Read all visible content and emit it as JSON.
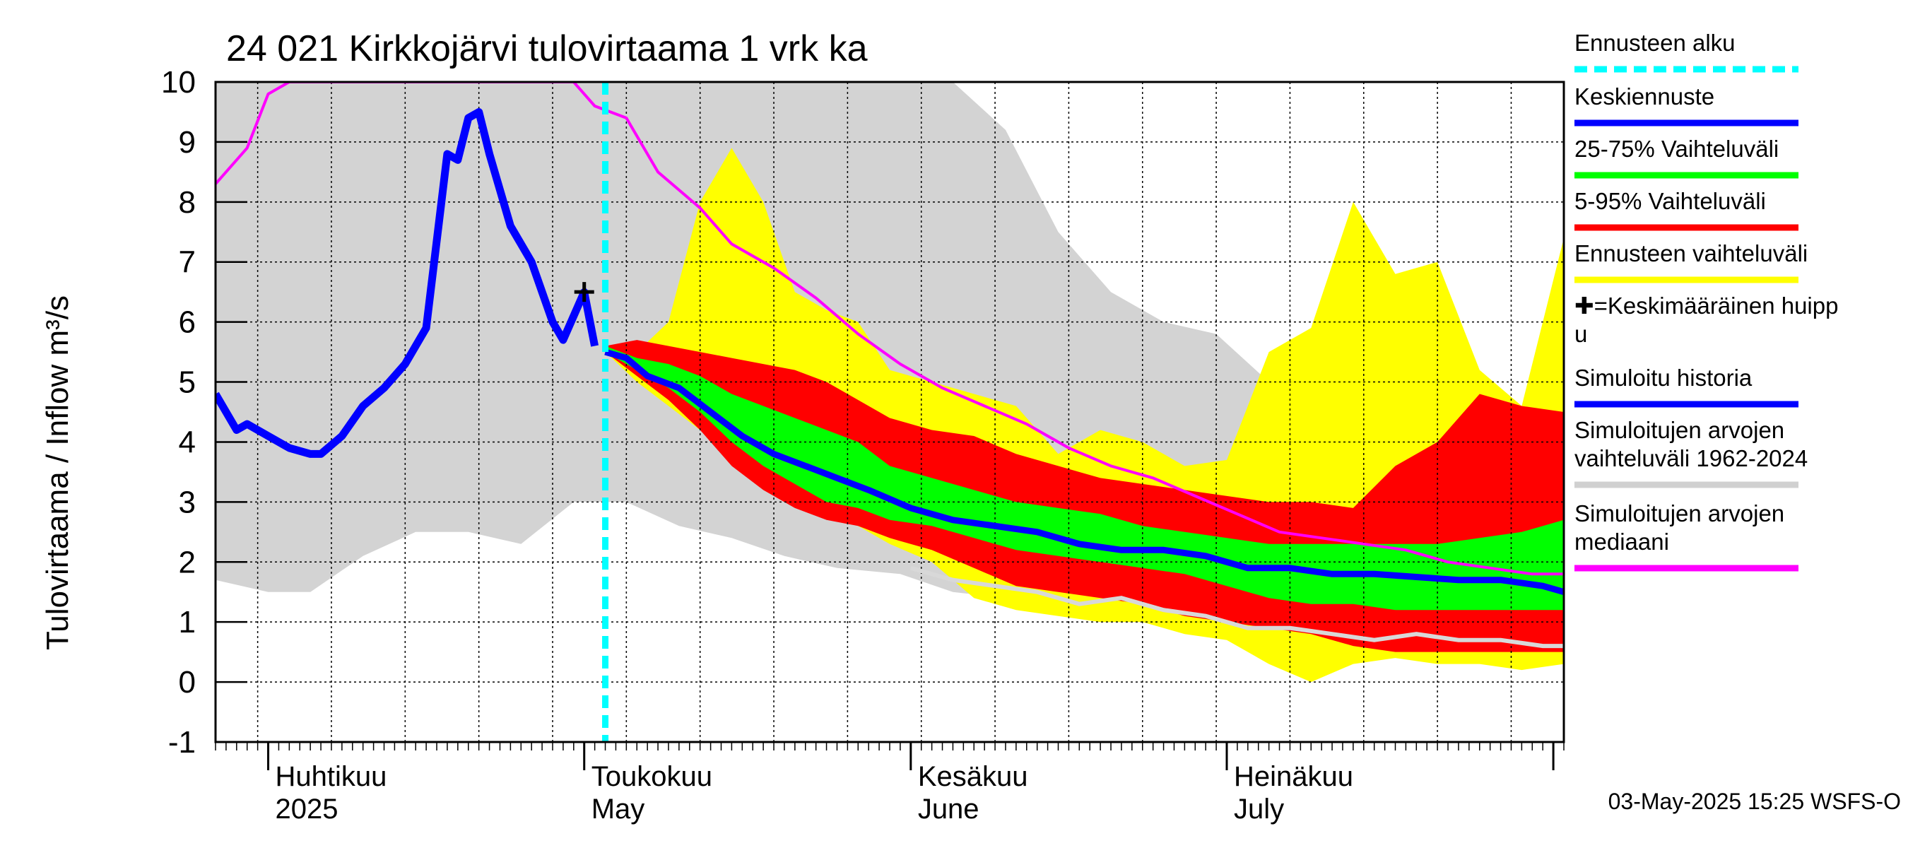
{
  "chart_data": {
    "type": "area",
    "title": "24 021 Kirkkojärvi tulovirtaama 1 vrk ka",
    "ylabel": "Tulovirtaama / Inflow    m³/s",
    "ylim": [
      -1,
      10
    ],
    "yticks": [
      -1,
      0,
      1,
      2,
      3,
      4,
      5,
      6,
      7,
      8,
      9,
      10
    ],
    "xlim": [
      "2025-03-27",
      "2025-08-02"
    ],
    "grid": true,
    "month_labels": [
      {
        "fi": "Huhtikuu",
        "en": "2025",
        "date": "2025-04-01"
      },
      {
        "fi": "Toukokuu",
        "en": "May",
        "date": "2025-05-01"
      },
      {
        "fi": "Kesäkuu",
        "en": "June",
        "date": "2025-06-01"
      },
      {
        "fi": "Heinäkuu",
        "en": "July",
        "date": "2025-07-01"
      }
    ],
    "forecast_start": "2025-05-03",
    "mean_peak": {
      "date": "2025-05-01",
      "value": 6.5
    },
    "hist_band": {
      "x": [
        "2025-03-27",
        "2025-04-01",
        "2025-04-05",
        "2025-04-10",
        "2025-04-15",
        "2025-04-20",
        "2025-04-25",
        "2025-04-30",
        "2025-05-05",
        "2025-05-10",
        "2025-05-15",
        "2025-05-20",
        "2025-05-25",
        "2025-05-31",
        "2025-06-05",
        "2025-06-10",
        "2025-06-15",
        "2025-06-20",
        "2025-06-25",
        "2025-06-30",
        "2025-07-05",
        "2025-07-10",
        "2025-07-15",
        "2025-07-20",
        "2025-07-25",
        "2025-07-30",
        "2025-08-02"
      ],
      "lo": [
        1.7,
        1.5,
        1.5,
        2.1,
        2.5,
        2.5,
        2.3,
        3.0,
        3.0,
        2.6,
        2.4,
        2.1,
        1.9,
        1.8,
        1.5,
        1.4,
        1.4,
        1.2,
        1.1,
        1.0,
        0.9,
        0.8,
        0.7,
        0.6,
        0.5,
        0.4,
        0.4
      ],
      "hi": [
        10,
        10,
        10,
        10,
        10,
        10,
        10,
        10,
        10,
        10,
        10,
        10,
        10,
        10,
        10,
        9.2,
        7.5,
        6.5,
        6.0,
        5.8,
        5.0,
        4.6,
        4.4,
        4.6,
        4.2,
        4.0,
        4.0
      ]
    },
    "forecast_range": {
      "x": [
        "2025-05-03",
        "2025-05-06",
        "2025-05-09",
        "2025-05-12",
        "2025-05-15",
        "2025-05-18",
        "2025-05-21",
        "2025-05-24",
        "2025-05-27",
        "2025-05-30",
        "2025-06-03",
        "2025-06-07",
        "2025-06-11",
        "2025-06-15",
        "2025-06-19",
        "2025-06-23",
        "2025-06-27",
        "2025-07-01",
        "2025-07-05",
        "2025-07-09",
        "2025-07-13",
        "2025-07-17",
        "2025-07-21",
        "2025-07-25",
        "2025-07-29",
        "2025-08-02"
      ],
      "lo": [
        5.5,
        5.0,
        4.6,
        4.2,
        3.8,
        3.4,
        3.0,
        2.8,
        2.6,
        2.3,
        2.0,
        1.4,
        1.2,
        1.1,
        1.0,
        1.0,
        0.8,
        0.7,
        0.3,
        0.0,
        0.3,
        0.4,
        0.3,
        0.3,
        0.2,
        0.3
      ],
      "hi": [
        5.6,
        5.5,
        6.0,
        8.0,
        8.9,
        8.0,
        6.5,
        6.2,
        6.0,
        5.2,
        5.0,
        4.8,
        4.6,
        3.8,
        4.2,
        4.0,
        3.6,
        3.7,
        5.5,
        5.9,
        8.0,
        6.8,
        7.0,
        5.2,
        4.6,
        7.4
      ]
    },
    "p5_95": {
      "x": [
        "2025-05-03",
        "2025-05-06",
        "2025-05-09",
        "2025-05-12",
        "2025-05-15",
        "2025-05-18",
        "2025-05-21",
        "2025-05-24",
        "2025-05-27",
        "2025-05-30",
        "2025-06-03",
        "2025-06-07",
        "2025-06-11",
        "2025-06-15",
        "2025-06-19",
        "2025-06-23",
        "2025-06-27",
        "2025-07-01",
        "2025-07-05",
        "2025-07-09",
        "2025-07-13",
        "2025-07-17",
        "2025-07-21",
        "2025-07-25",
        "2025-07-29",
        "2025-08-02"
      ],
      "lo": [
        5.5,
        5.1,
        4.7,
        4.2,
        3.6,
        3.2,
        2.9,
        2.7,
        2.6,
        2.4,
        2.2,
        1.9,
        1.6,
        1.5,
        1.4,
        1.3,
        1.1,
        1.0,
        0.9,
        0.8,
        0.6,
        0.5,
        0.5,
        0.5,
        0.5,
        0.5
      ],
      "hi": [
        5.6,
        5.7,
        5.6,
        5.5,
        5.4,
        5.3,
        5.2,
        5.0,
        4.7,
        4.4,
        4.2,
        4.1,
        3.8,
        3.6,
        3.4,
        3.3,
        3.2,
        3.1,
        3.0,
        3.0,
        2.9,
        3.6,
        4.0,
        4.8,
        4.6,
        4.5
      ]
    },
    "p25_75": {
      "x": [
        "2025-05-03",
        "2025-05-06",
        "2025-05-09",
        "2025-05-12",
        "2025-05-15",
        "2025-05-18",
        "2025-05-21",
        "2025-05-24",
        "2025-05-27",
        "2025-05-30",
        "2025-06-03",
        "2025-06-07",
        "2025-06-11",
        "2025-06-15",
        "2025-06-19",
        "2025-06-23",
        "2025-06-27",
        "2025-07-01",
        "2025-07-05",
        "2025-07-09",
        "2025-07-13",
        "2025-07-17",
        "2025-07-21",
        "2025-07-25",
        "2025-07-29",
        "2025-08-02"
      ],
      "lo": [
        5.5,
        5.2,
        4.9,
        4.5,
        4.0,
        3.6,
        3.3,
        3.0,
        2.9,
        2.7,
        2.6,
        2.4,
        2.2,
        2.1,
        2.0,
        1.9,
        1.8,
        1.6,
        1.4,
        1.3,
        1.3,
        1.2,
        1.2,
        1.2,
        1.2,
        1.2
      ],
      "hi": [
        5.6,
        5.4,
        5.3,
        5.1,
        4.8,
        4.6,
        4.4,
        4.2,
        4.0,
        3.6,
        3.4,
        3.2,
        3.0,
        2.9,
        2.8,
        2.6,
        2.5,
        2.4,
        2.3,
        2.3,
        2.3,
        2.3,
        2.3,
        2.4,
        2.5,
        2.7
      ]
    },
    "series": [
      {
        "name": "Simuloitu historia",
        "color": "#0000ff",
        "x": [
          "2025-03-27",
          "2025-03-29",
          "2025-03-30",
          "2025-03-31",
          "2025-04-01",
          "2025-04-03",
          "2025-04-05",
          "2025-04-06",
          "2025-04-08",
          "2025-04-10",
          "2025-04-12",
          "2025-04-14",
          "2025-04-16",
          "2025-04-18",
          "2025-04-19",
          "2025-04-20",
          "2025-04-21",
          "2025-04-22",
          "2025-04-23",
          "2025-04-24",
          "2025-04-26",
          "2025-04-28",
          "2025-04-29",
          "2025-05-01",
          "2025-05-02"
        ],
        "y": [
          4.8,
          4.2,
          4.3,
          4.2,
          4.1,
          3.9,
          3.8,
          3.8,
          4.1,
          4.6,
          4.9,
          5.3,
          5.9,
          8.8,
          8.7,
          9.4,
          9.5,
          8.8,
          8.2,
          7.6,
          7.0,
          6.0,
          5.7,
          6.5,
          5.6
        ]
      },
      {
        "name": "Keskiennuste",
        "color": "#0000ff",
        "x": [
          "2025-05-03",
          "2025-05-05",
          "2025-05-07",
          "2025-05-10",
          "2025-05-13",
          "2025-05-16",
          "2025-05-19",
          "2025-05-22",
          "2025-05-25",
          "2025-05-28",
          "2025-06-01",
          "2025-06-05",
          "2025-06-09",
          "2025-06-13",
          "2025-06-17",
          "2025-06-21",
          "2025-06-25",
          "2025-06-29",
          "2025-07-03",
          "2025-07-07",
          "2025-07-11",
          "2025-07-15",
          "2025-07-19",
          "2025-07-23",
          "2025-07-27",
          "2025-07-31",
          "2025-08-02"
        ],
        "y": [
          5.5,
          5.4,
          5.1,
          4.9,
          4.5,
          4.1,
          3.8,
          3.6,
          3.4,
          3.2,
          2.9,
          2.7,
          2.6,
          2.5,
          2.3,
          2.2,
          2.2,
          2.1,
          1.9,
          1.9,
          1.8,
          1.8,
          1.75,
          1.7,
          1.7,
          1.6,
          1.5
        ]
      },
      {
        "name": "Simuloitujen arvojen mediaani",
        "color": "#ff00ff",
        "x": [
          "2025-03-27",
          "2025-03-30",
          "2025-04-01",
          "2025-04-03",
          "2025-04-30",
          "2025-05-02",
          "2025-05-05",
          "2025-05-08",
          "2025-05-12",
          "2025-05-15",
          "2025-05-19",
          "2025-05-23",
          "2025-05-27",
          "2025-05-31",
          "2025-06-04",
          "2025-06-08",
          "2025-06-12",
          "2025-06-16",
          "2025-06-20",
          "2025-06-24",
          "2025-06-28",
          "2025-07-02",
          "2025-07-06",
          "2025-07-10",
          "2025-07-14",
          "2025-07-18",
          "2025-07-22",
          "2025-07-26",
          "2025-07-30",
          "2025-08-02"
        ],
        "y": [
          8.3,
          8.9,
          9.8,
          10,
          10,
          9.6,
          9.4,
          8.5,
          7.9,
          7.3,
          6.9,
          6.4,
          5.8,
          5.3,
          4.9,
          4.6,
          4.3,
          3.9,
          3.6,
          3.4,
          3.1,
          2.8,
          2.5,
          2.4,
          2.3,
          2.2,
          2.0,
          1.9,
          1.8,
          1.8
        ]
      },
      {
        "name": "Median (hist)",
        "color": "#d8d8d8",
        "x": [
          "2025-06-01",
          "2025-06-05",
          "2025-06-09",
          "2025-06-13",
          "2025-06-17",
          "2025-06-21",
          "2025-06-25",
          "2025-06-29",
          "2025-07-03",
          "2025-07-07",
          "2025-07-11",
          "2025-07-15",
          "2025-07-19",
          "2025-07-23",
          "2025-07-27",
          "2025-07-31",
          "2025-08-02"
        ],
        "y": [
          1.9,
          1.7,
          1.6,
          1.5,
          1.3,
          1.4,
          1.2,
          1.1,
          0.9,
          0.9,
          0.8,
          0.7,
          0.8,
          0.7,
          0.7,
          0.6,
          0.6
        ]
      }
    ]
  },
  "legend": [
    {
      "label": "Ennusteen alku",
      "color": "#00ffff",
      "style": "dashed"
    },
    {
      "label": "Keskiennuste",
      "color": "#0000ff",
      "style": "line"
    },
    {
      "label": "25-75% Vaihteluväli",
      "color": "#00ff00",
      "style": "line"
    },
    {
      "label": "5-95% Vaihteluväli",
      "color": "#ff0000",
      "style": "line"
    },
    {
      "label": "Ennusteen vaihteluväli",
      "color": "#ffff00",
      "style": "line"
    },
    {
      "label": "✚=Keskimääräinen huipp\nu",
      "color": "#000000",
      "style": "none"
    },
    {
      "label": "Simuloitu historia",
      "color": "#0000ff",
      "style": "line"
    },
    {
      "label": "Simuloitujen arvojen\nvaihteluväli 1962-2024",
      "color": "#d0d0d0",
      "style": "line"
    },
    {
      "label": "Simuloitujen arvojen\nmediaani",
      "color": "#ff00ff",
      "style": "line"
    }
  ],
  "footer": {
    "timestamp": "03-May-2025 15:25 WSFS-O"
  }
}
